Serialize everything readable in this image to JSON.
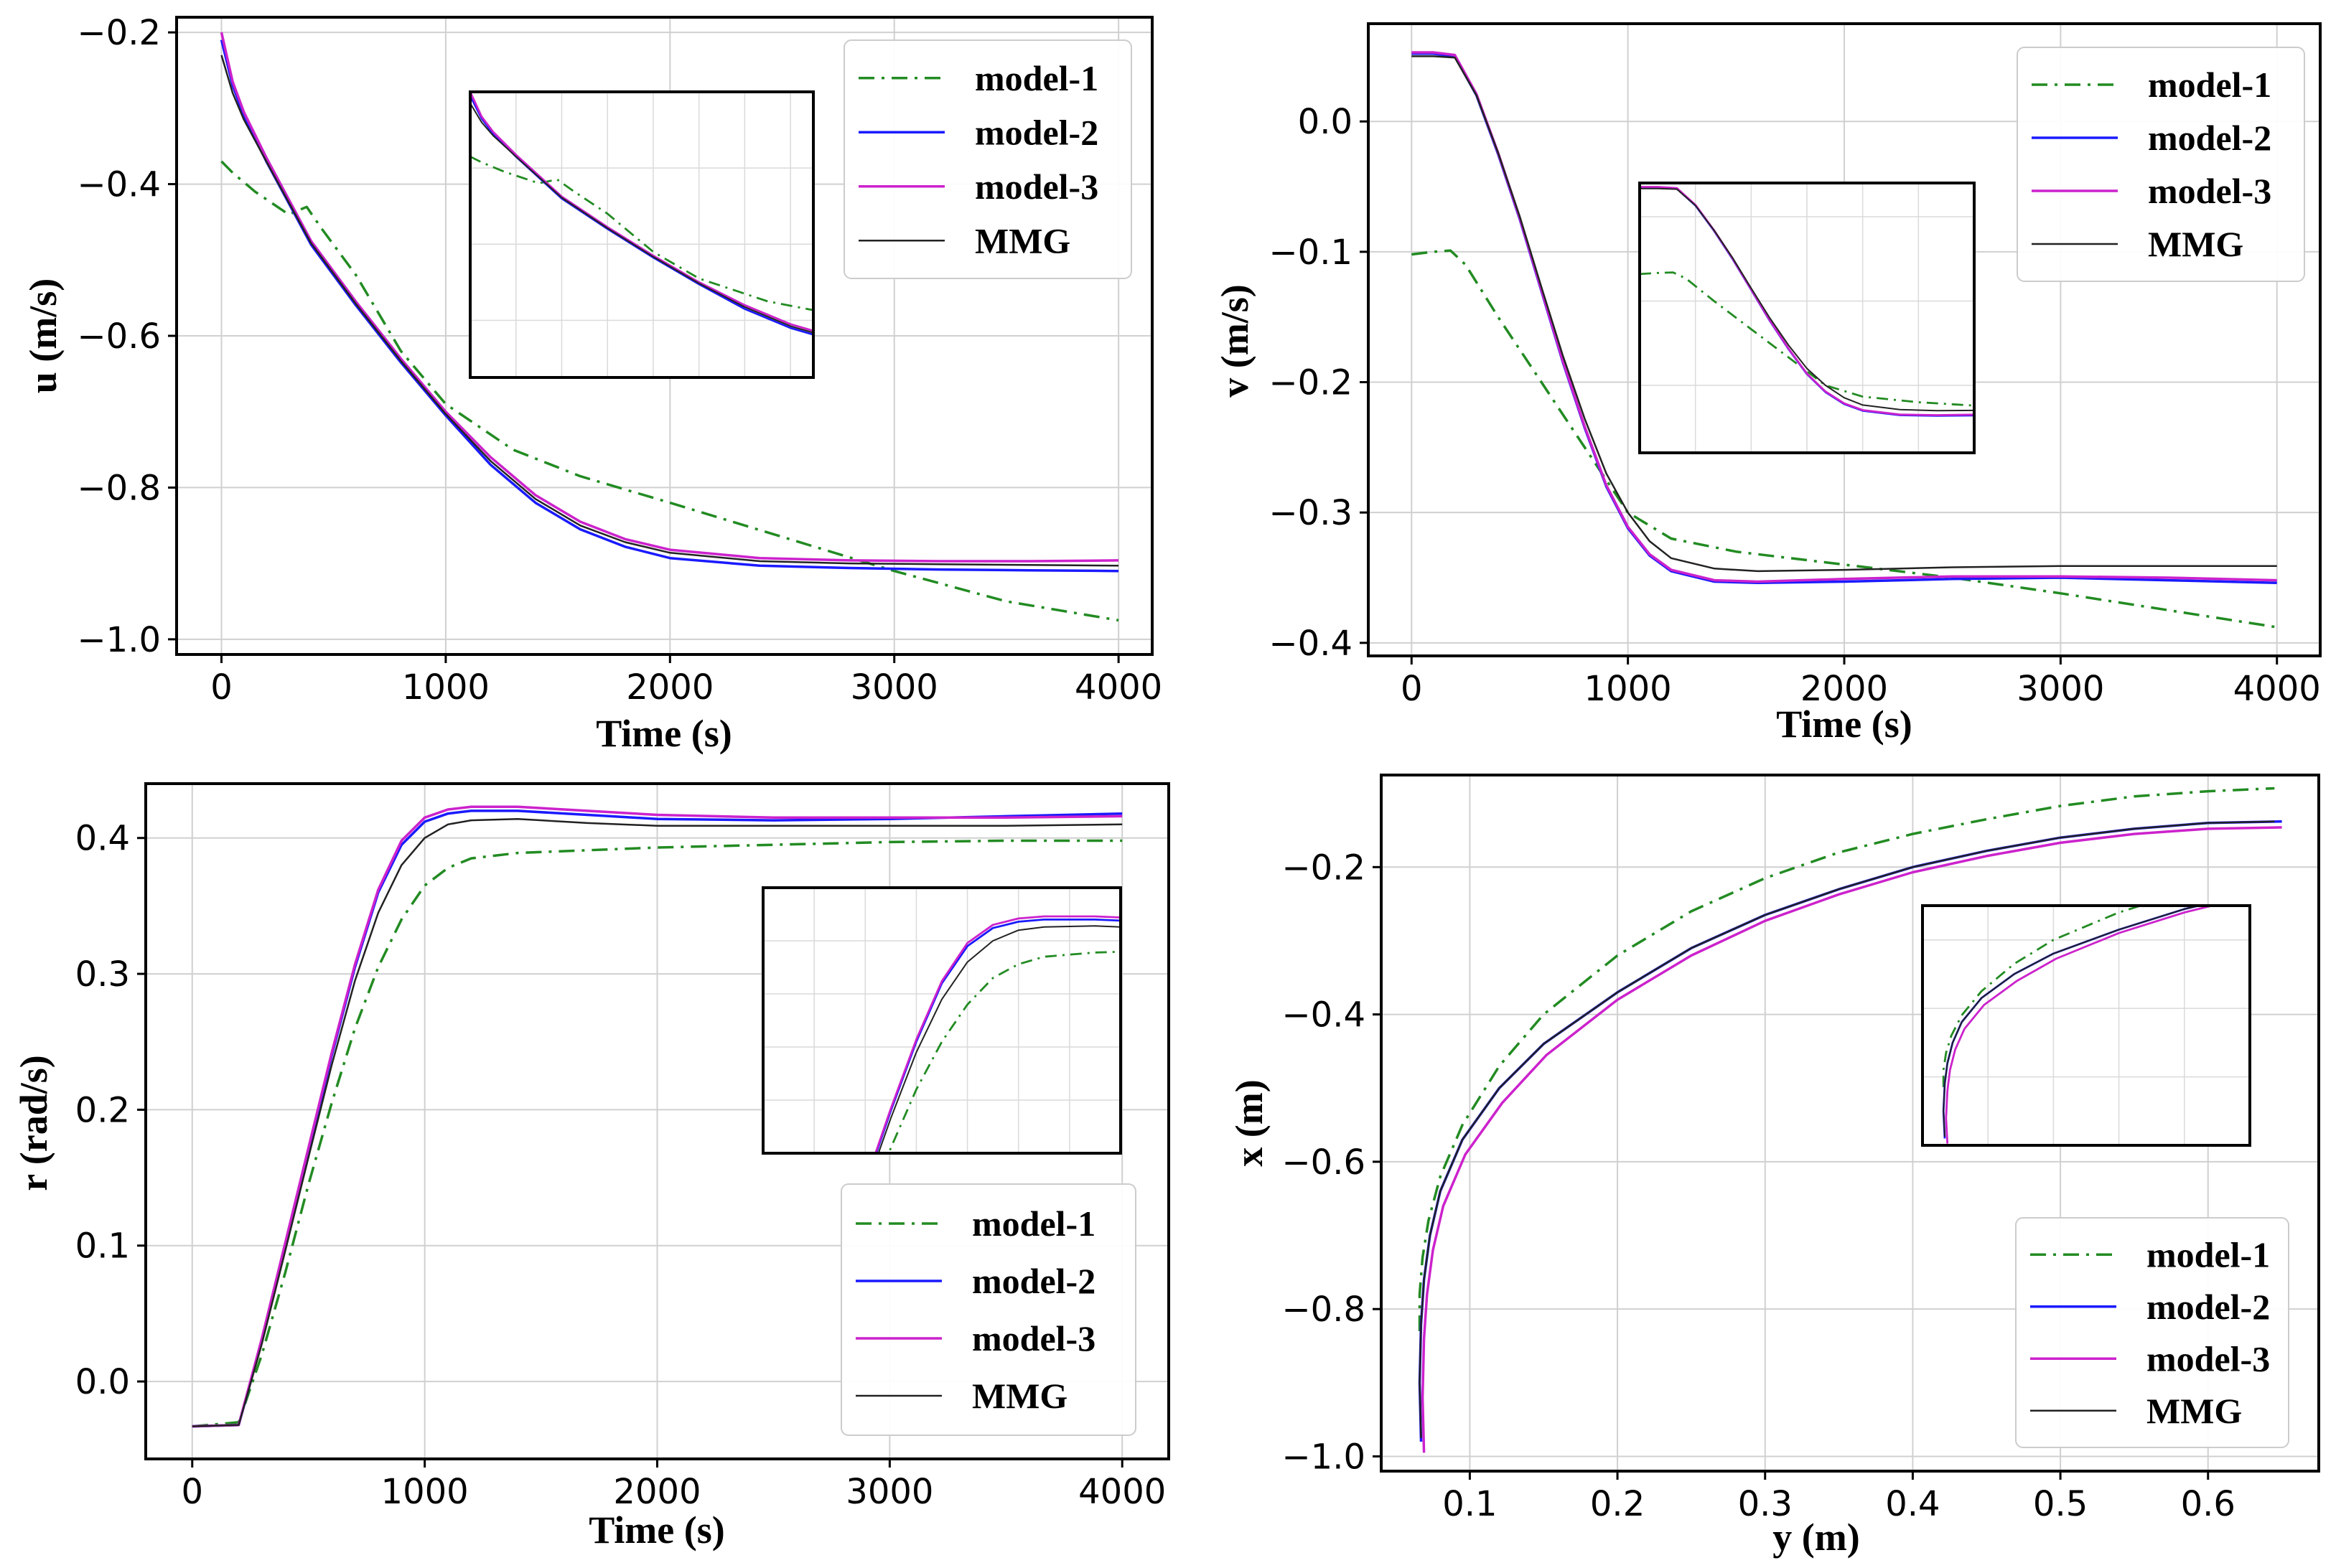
{
  "colors": {
    "model1": "#228B22",
    "model2": "#1a1aff",
    "model3": "#cc22cc",
    "mmg": "#222222"
  },
  "chart_data": [
    {
      "id": "u",
      "type": "line",
      "xlabel": "Time (s)",
      "ylabel": "u (m/s)",
      "xlim": [
        -200,
        4150
      ],
      "ylim": [
        -1.02,
        -0.18
      ],
      "xticks": [
        0,
        1000,
        2000,
        3000,
        4000
      ],
      "xtick_labels": [
        "0",
        "1000",
        "2000",
        "3000",
        "4000"
      ],
      "yticks": [
        -1.0,
        -0.8,
        -0.6,
        -0.4,
        -0.2
      ],
      "ytick_labels": [
        "−1.0",
        "−0.8",
        "−0.6",
        "−0.4",
        "−0.2"
      ],
      "legend": [
        "model-1",
        "model-2",
        "model-3",
        "MMG"
      ],
      "legend_position": "top-right",
      "series": [
        {
          "name": "model-1",
          "style": "dashdot",
          "x": [
            0,
            50,
            150,
            300,
            380,
            450,
            600,
            800,
            1000,
            1300,
            1600,
            2000,
            2500,
            3000,
            3500,
            4000
          ],
          "y": [
            -0.37,
            -0.385,
            -0.41,
            -0.44,
            -0.43,
            -0.46,
            -0.52,
            -0.62,
            -0.69,
            -0.75,
            -0.785,
            -0.82,
            -0.865,
            -0.91,
            -0.95,
            -0.975
          ]
        },
        {
          "name": "model-2",
          "style": "solid",
          "x": [
            0,
            50,
            100,
            200,
            400,
            600,
            800,
            1000,
            1200,
            1400,
            1600,
            1800,
            2000,
            2400,
            2800,
            3200,
            3600,
            4000
          ],
          "y": [
            -0.21,
            -0.27,
            -0.31,
            -0.37,
            -0.48,
            -0.56,
            -0.635,
            -0.705,
            -0.77,
            -0.82,
            -0.855,
            -0.878,
            -0.893,
            -0.903,
            -0.906,
            -0.908,
            -0.909,
            -0.91
          ]
        },
        {
          "name": "model-3",
          "style": "solid",
          "x": [
            0,
            50,
            100,
            200,
            400,
            600,
            800,
            1000,
            1200,
            1400,
            1600,
            1800,
            2000,
            2400,
            2800,
            3200,
            3600,
            4000
          ],
          "y": [
            -0.2,
            -0.265,
            -0.305,
            -0.365,
            -0.475,
            -0.555,
            -0.63,
            -0.7,
            -0.76,
            -0.81,
            -0.845,
            -0.868,
            -0.882,
            -0.893,
            -0.896,
            -0.897,
            -0.897,
            -0.896
          ]
        },
        {
          "name": "MMG",
          "style": "solid",
          "x": [
            0,
            50,
            100,
            200,
            400,
            600,
            800,
            1000,
            1200,
            1400,
            1600,
            1800,
            2000,
            2400,
            2800,
            3200,
            3600,
            4000
          ],
          "y": [
            -0.23,
            -0.28,
            -0.315,
            -0.37,
            -0.478,
            -0.558,
            -0.633,
            -0.703,
            -0.765,
            -0.815,
            -0.85,
            -0.872,
            -0.886,
            -0.897,
            -0.9,
            -0.901,
            -0.902,
            -0.903
          ]
        }
      ]
    },
    {
      "id": "v",
      "type": "line",
      "xlabel": "Time (s)",
      "ylabel": "v (m/s)",
      "xlim": [
        -200,
        4200
      ],
      "ylim": [
        -0.41,
        0.075
      ],
      "xticks": [
        0,
        1000,
        2000,
        3000,
        4000
      ],
      "xtick_labels": [
        "0",
        "1000",
        "2000",
        "3000",
        "4000"
      ],
      "yticks": [
        -0.4,
        -0.3,
        -0.2,
        -0.1,
        0.0
      ],
      "ytick_labels": [
        "−0.4",
        "−0.3",
        "−0.2",
        "−0.1",
        "0.0"
      ],
      "legend": [
        "model-1",
        "model-2",
        "model-3",
        "MMG"
      ],
      "legend_position": "top-right",
      "series": [
        {
          "name": "model-1",
          "style": "dashdot",
          "x": [
            0,
            100,
            180,
            250,
            400,
            600,
            800,
            1000,
            1200,
            1500,
            2000,
            2500,
            3000,
            3500,
            4000
          ],
          "y": [
            -0.102,
            -0.1,
            -0.099,
            -0.11,
            -0.15,
            -0.2,
            -0.25,
            -0.3,
            -0.32,
            -0.33,
            -0.34,
            -0.35,
            -0.362,
            -0.375,
            -0.388
          ]
        },
        {
          "name": "model-2",
          "style": "solid",
          "x": [
            0,
            100,
            200,
            300,
            400,
            500,
            600,
            700,
            800,
            900,
            1000,
            1100,
            1200,
            1400,
            1600,
            2000,
            2500,
            3000,
            3500,
            4000
          ],
          "y": [
            0.052,
            0.052,
            0.05,
            0.02,
            -0.025,
            -0.075,
            -0.13,
            -0.185,
            -0.235,
            -0.28,
            -0.312,
            -0.333,
            -0.345,
            -0.353,
            -0.354,
            -0.353,
            -0.351,
            -0.35,
            -0.352,
            -0.354
          ]
        },
        {
          "name": "model-3",
          "style": "solid",
          "x": [
            0,
            100,
            200,
            300,
            400,
            500,
            600,
            700,
            800,
            900,
            1000,
            1100,
            1200,
            1400,
            1600,
            2000,
            2500,
            3000,
            3500,
            4000
          ],
          "y": [
            0.053,
            0.053,
            0.051,
            0.021,
            -0.024,
            -0.074,
            -0.129,
            -0.184,
            -0.234,
            -0.279,
            -0.311,
            -0.332,
            -0.344,
            -0.352,
            -0.353,
            -0.351,
            -0.349,
            -0.349,
            -0.35,
            -0.352
          ]
        },
        {
          "name": "MMG",
          "style": "solid",
          "x": [
            0,
            100,
            200,
            300,
            400,
            500,
            600,
            700,
            800,
            900,
            1000,
            1100,
            1200,
            1400,
            1600,
            2000,
            2500,
            3000,
            3500,
            4000
          ],
          "y": [
            0.05,
            0.05,
            0.049,
            0.02,
            -0.024,
            -0.073,
            -0.127,
            -0.18,
            -0.228,
            -0.27,
            -0.3,
            -0.322,
            -0.335,
            -0.343,
            -0.345,
            -0.344,
            -0.342,
            -0.341,
            -0.341,
            -0.341
          ]
        }
      ]
    },
    {
      "id": "r",
      "type": "line",
      "xlabel": "Time (s)",
      "ylabel": "r (rad/s)",
      "xlim": [
        -200,
        4200
      ],
      "ylim": [
        -0.057,
        0.44
      ],
      "xticks": [
        0,
        1000,
        2000,
        3000,
        4000
      ],
      "xtick_labels": [
        "0",
        "1000",
        "2000",
        "3000",
        "4000"
      ],
      "yticks": [
        0.0,
        0.1,
        0.2,
        0.3,
        0.4
      ],
      "ytick_labels": [
        "0.0",
        "0.1",
        "0.2",
        "0.3",
        "0.4"
      ],
      "legend": [
        "model-1",
        "model-2",
        "model-3",
        "MMG"
      ],
      "legend_position": "lower-right",
      "series": [
        {
          "name": "model-1",
          "style": "dashdot",
          "x": [
            0,
            200,
            300,
            400,
            500,
            600,
            700,
            800,
            900,
            1000,
            1100,
            1200,
            1400,
            1700,
            2000,
            2500,
            3000,
            3500,
            4000
          ],
          "y": [
            -0.033,
            -0.03,
            0.02,
            0.08,
            0.145,
            0.205,
            0.26,
            0.305,
            0.34,
            0.365,
            0.378,
            0.385,
            0.389,
            0.391,
            0.393,
            0.395,
            0.397,
            0.398,
            0.398
          ]
        },
        {
          "name": "model-2",
          "style": "solid",
          "x": [
            0,
            200,
            300,
            400,
            500,
            600,
            700,
            800,
            900,
            1000,
            1100,
            1200,
            1400,
            1700,
            2000,
            2500,
            3000,
            3500,
            4000
          ],
          "y": [
            -0.033,
            -0.032,
            0.03,
            0.1,
            0.17,
            0.24,
            0.305,
            0.36,
            0.395,
            0.412,
            0.418,
            0.42,
            0.42,
            0.417,
            0.414,
            0.413,
            0.414,
            0.416,
            0.418
          ]
        },
        {
          "name": "model-3",
          "style": "solid",
          "x": [
            0,
            200,
            300,
            400,
            500,
            600,
            700,
            800,
            900,
            1000,
            1100,
            1200,
            1400,
            1700,
            2000,
            2500,
            3000,
            3500,
            4000
          ],
          "y": [
            -0.033,
            -0.032,
            0.032,
            0.102,
            0.172,
            0.242,
            0.307,
            0.362,
            0.398,
            0.415,
            0.421,
            0.423,
            0.423,
            0.42,
            0.417,
            0.415,
            0.415,
            0.415,
            0.416
          ]
        },
        {
          "name": "MMG",
          "style": "solid",
          "x": [
            0,
            200,
            300,
            400,
            500,
            600,
            700,
            800,
            900,
            1000,
            1100,
            1200,
            1400,
            1700,
            2000,
            2500,
            3000,
            3500,
            4000
          ],
          "y": [
            -0.033,
            -0.032,
            0.028,
            0.096,
            0.165,
            0.233,
            0.295,
            0.345,
            0.38,
            0.4,
            0.41,
            0.413,
            0.414,
            0.411,
            0.409,
            0.409,
            0.409,
            0.409,
            0.41
          ]
        }
      ]
    },
    {
      "id": "xy",
      "type": "line",
      "xlabel": "y (m)",
      "ylabel": "x (m)",
      "xlim": [
        0.04,
        0.675
      ],
      "ylim": [
        -1.02,
        -0.075
      ],
      "xticks": [
        0.1,
        0.2,
        0.3,
        0.4,
        0.5,
        0.6
      ],
      "xtick_labels": [
        "0.1",
        "0.2",
        "0.3",
        "0.4",
        "0.5",
        "0.6"
      ],
      "yticks": [
        -1.0,
        -0.8,
        -0.6,
        -0.4,
        -0.2
      ],
      "ytick_labels": [
        "−1.0",
        "−0.8",
        "−0.6",
        "−0.4",
        "−0.2"
      ],
      "legend": [
        "model-1",
        "model-2",
        "model-3",
        "MMG"
      ],
      "legend_position": "lower-right",
      "series": [
        {
          "name": "model-1",
          "style": "dashdot",
          "x": [
            0.066,
            0.066,
            0.068,
            0.072,
            0.08,
            0.095,
            0.12,
            0.15,
            0.2,
            0.25,
            0.3,
            0.35,
            0.4,
            0.45,
            0.5,
            0.55,
            0.6,
            0.645
          ],
          "y": [
            -0.83,
            -0.78,
            -0.73,
            -0.68,
            -0.62,
            -0.55,
            -0.47,
            -0.4,
            -0.32,
            -0.26,
            -0.215,
            -0.18,
            -0.155,
            -0.135,
            -0.117,
            -0.104,
            -0.097,
            -0.093
          ]
        },
        {
          "name": "model-2",
          "style": "solid",
          "x": [
            0.067,
            0.066,
            0.067,
            0.069,
            0.073,
            0.08,
            0.095,
            0.12,
            0.15,
            0.2,
            0.25,
            0.3,
            0.35,
            0.4,
            0.45,
            0.5,
            0.55,
            0.6,
            0.65
          ],
          "y": [
            -0.98,
            -0.9,
            -0.82,
            -0.76,
            -0.7,
            -0.64,
            -0.57,
            -0.5,
            -0.44,
            -0.37,
            -0.31,
            -0.265,
            -0.23,
            -0.2,
            -0.178,
            -0.16,
            -0.148,
            -0.14,
            -0.138
          ]
        },
        {
          "name": "model-3",
          "style": "solid",
          "x": [
            0.069,
            0.068,
            0.069,
            0.071,
            0.075,
            0.082,
            0.097,
            0.122,
            0.152,
            0.2,
            0.25,
            0.3,
            0.35,
            0.4,
            0.45,
            0.5,
            0.55,
            0.6,
            0.65
          ],
          "y": [
            -0.995,
            -0.92,
            -0.84,
            -0.78,
            -0.72,
            -0.66,
            -0.59,
            -0.52,
            -0.455,
            -0.38,
            -0.32,
            -0.273,
            -0.237,
            -0.207,
            -0.185,
            -0.167,
            -0.155,
            -0.148,
            -0.146
          ]
        },
        {
          "name": "MMG",
          "style": "solid",
          "x": [
            0.067,
            0.066,
            0.067,
            0.069,
            0.073,
            0.08,
            0.095,
            0.12,
            0.15,
            0.2,
            0.25,
            0.3,
            0.35,
            0.4,
            0.45,
            0.5,
            0.55,
            0.6,
            0.645
          ],
          "y": [
            -0.975,
            -0.9,
            -0.82,
            -0.76,
            -0.7,
            -0.64,
            -0.57,
            -0.5,
            -0.44,
            -0.37,
            -0.31,
            -0.265,
            -0.23,
            -0.2,
            -0.178,
            -0.16,
            -0.148,
            -0.14,
            -0.138
          ]
        }
      ]
    }
  ]
}
